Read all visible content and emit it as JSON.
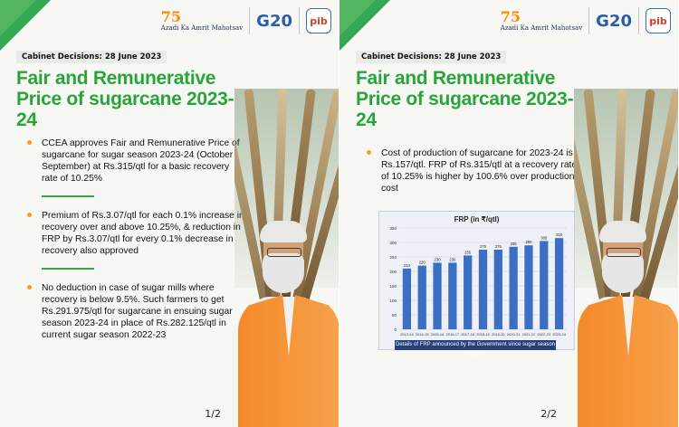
{
  "panel1": {
    "logos": {
      "azadi_top": "75",
      "azadi_text": "Azadi Ka Amrit Mahotsav",
      "g20": "G20",
      "pib": "pib"
    },
    "cabinet": "Cabinet Decisions: 28 June 2023",
    "title": "Fair and Remunerative Price of sugarcane 2023-24",
    "bullets": [
      "CCEA approves Fair and Remunerative Price of sugarcane for sugar season 2023-24 (October - September) at Rs.315/qtl for a basic recovery rate of 10.25%",
      "Premium of Rs.3.07/qtl for each 0.1% increase in recovery over and above 10.25%, & reduction in FRP by Rs.3.07/qtl for every 0.1% decrease in recovery also approved",
      "No deduction in case of sugar mills where recovery is below 9.5%. Such farmers to get Rs.291.975/qtl for sugarcane in ensuing sugar season 2023-24 in place of Rs.282.125/qtl in current sugar season 2022-23"
    ],
    "page": "1/2"
  },
  "panel2": {
    "logos": {
      "azadi_top": "75",
      "azadi_text": "Azadi Ka Amrit Mahotsav",
      "g20": "G20",
      "pib": "pib"
    },
    "cabinet": "Cabinet Decisions: 28 June 2023",
    "title": "Fair and Remunerative Price of sugarcane 2023-24",
    "bullet": "Cost of production of sugarcane for 2023-24 is Rs.157/qtl. FRP of Rs.315/qtl at a recovery rate of 10.25% is higher by 100.6% over production cost",
    "caption": "Details of FRP announced by the Government since sugar season 2013-14",
    "page": "2/2"
  },
  "colors": {
    "green": "#28a53a",
    "orange": "#ff9b1a",
    "bar": "#3b6fc4",
    "caption_bg": "#23407a"
  },
  "chart_data": {
    "type": "bar",
    "title": "FRP (in ₹/qtl)",
    "categories": [
      "2013-14",
      "2014-15",
      "2015-16",
      "2016-17",
      "2017-18",
      "2018-19",
      "2019-20",
      "2020-21",
      "2021-22",
      "2022-23",
      "2023-24"
    ],
    "values": [
      210,
      220,
      230,
      230,
      255,
      275,
      275,
      285,
      290,
      305,
      315
    ],
    "yticks": [
      0,
      50,
      100,
      150,
      200,
      250,
      300,
      350
    ],
    "ylim": [
      0,
      350
    ],
    "grid": true
  }
}
